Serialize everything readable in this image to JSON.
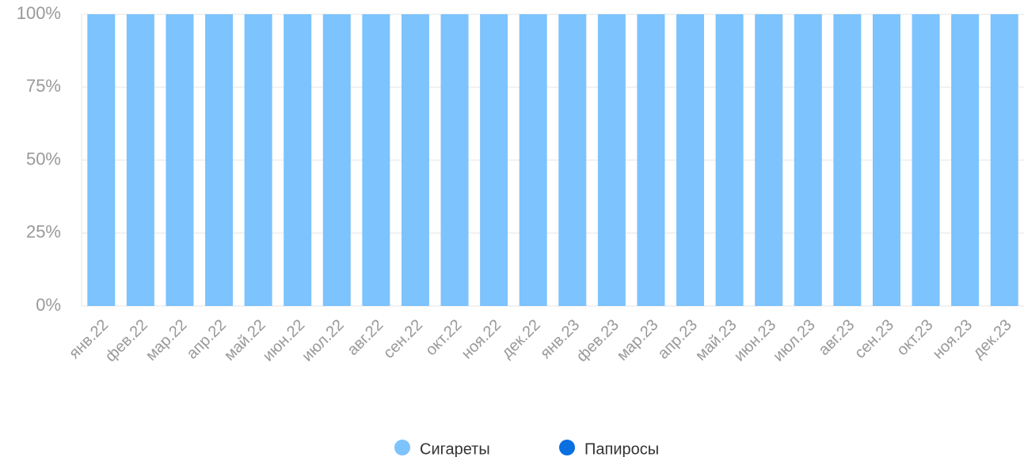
{
  "chart_data": {
    "type": "bar",
    "stacked": true,
    "categories": [
      "янв.22",
      "фев.22",
      "мар.22",
      "апр.22",
      "май.22",
      "июн.22",
      "июл.22",
      "авг.22",
      "сен.22",
      "окт.22",
      "ноя.22",
      "дек.22",
      "янв.23",
      "фев.23",
      "мар.23",
      "апр.23",
      "май.23",
      "июн.23",
      "июл.23",
      "авг.23",
      "сен.23",
      "окт.23",
      "ноя.23",
      "дек.23"
    ],
    "series": [
      {
        "name": "Сигареты",
        "color": "#7dc3fd",
        "values": [
          100,
          100,
          100,
          100,
          100,
          100,
          100,
          100,
          100,
          100,
          100,
          100,
          100,
          100,
          100,
          100,
          100,
          100,
          100,
          100,
          100,
          100,
          100,
          100
        ]
      },
      {
        "name": "Папиросы",
        "color": "#0a6fdf",
        "values": [
          0,
          0,
          0,
          0,
          0,
          0,
          0,
          0,
          0,
          0,
          0,
          0,
          0,
          0,
          0,
          0,
          0,
          0,
          0,
          0,
          0,
          0,
          0,
          0
        ]
      }
    ],
    "ylim": [
      0,
      100
    ],
    "yticks": [
      {
        "value": 0,
        "label": "0%"
      },
      {
        "value": 25,
        "label": "25%"
      },
      {
        "value": 50,
        "label": "50%"
      },
      {
        "value": 75,
        "label": "75%"
      },
      {
        "value": 100,
        "label": "100%"
      }
    ],
    "grid": true
  }
}
